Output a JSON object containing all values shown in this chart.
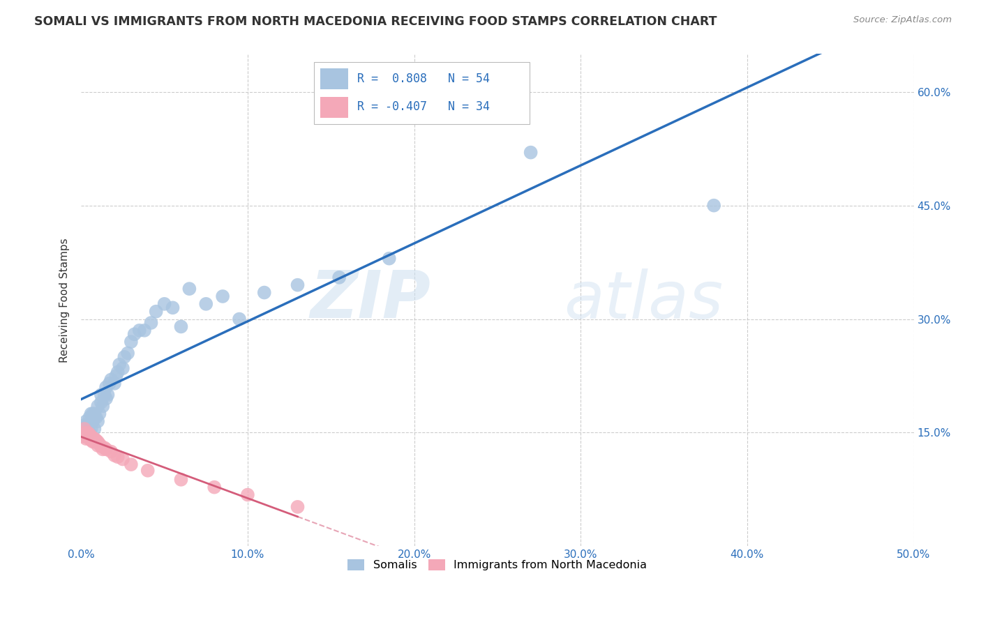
{
  "title": "SOMALI VS IMMIGRANTS FROM NORTH MACEDONIA RECEIVING FOOD STAMPS CORRELATION CHART",
  "source": "Source: ZipAtlas.com",
  "ylabel": "Receiving Food Stamps",
  "xlim": [
    0.0,
    0.5
  ],
  "ylim": [
    0.0,
    0.65
  ],
  "xticks": [
    0.0,
    0.1,
    0.2,
    0.3,
    0.4,
    0.5
  ],
  "yticks": [
    0.0,
    0.15,
    0.3,
    0.45,
    0.6
  ],
  "xtick_labels": [
    "0.0%",
    "10.0%",
    "20.0%",
    "30.0%",
    "40.0%",
    "50.0%"
  ],
  "ytick_labels": [
    "",
    "15.0%",
    "30.0%",
    "45.0%",
    "60.0%"
  ],
  "blue_R": 0.808,
  "blue_N": 54,
  "pink_R": -0.407,
  "pink_N": 34,
  "blue_color": "#a8c4e0",
  "pink_color": "#f4a8b8",
  "blue_line_color": "#2a6ebb",
  "pink_line_color": "#d45c7a",
  "watermark_zip": "ZIP",
  "watermark_atlas": "atlas",
  "legend_label_blue": "Somalis",
  "legend_label_pink": "Immigrants from North Macedonia",
  "somali_x": [
    0.001,
    0.002,
    0.002,
    0.003,
    0.003,
    0.004,
    0.004,
    0.005,
    0.005,
    0.006,
    0.006,
    0.007,
    0.007,
    0.008,
    0.008,
    0.009,
    0.01,
    0.01,
    0.011,
    0.012,
    0.012,
    0.013,
    0.014,
    0.015,
    0.015,
    0.016,
    0.017,
    0.018,
    0.02,
    0.021,
    0.022,
    0.023,
    0.025,
    0.026,
    0.028,
    0.03,
    0.032,
    0.035,
    0.038,
    0.042,
    0.045,
    0.05,
    0.055,
    0.06,
    0.065,
    0.075,
    0.085,
    0.095,
    0.11,
    0.13,
    0.155,
    0.185,
    0.27,
    0.38
  ],
  "somali_y": [
    0.15,
    0.155,
    0.16,
    0.145,
    0.165,
    0.155,
    0.16,
    0.15,
    0.17,
    0.155,
    0.175,
    0.165,
    0.175,
    0.155,
    0.175,
    0.17,
    0.165,
    0.185,
    0.175,
    0.19,
    0.2,
    0.185,
    0.2,
    0.195,
    0.21,
    0.2,
    0.215,
    0.22,
    0.215,
    0.225,
    0.23,
    0.24,
    0.235,
    0.25,
    0.255,
    0.27,
    0.28,
    0.285,
    0.285,
    0.295,
    0.31,
    0.32,
    0.315,
    0.29,
    0.34,
    0.32,
    0.33,
    0.3,
    0.335,
    0.345,
    0.355,
    0.38,
    0.52,
    0.45
  ],
  "macedonia_x": [
    0.001,
    0.001,
    0.002,
    0.002,
    0.003,
    0.003,
    0.004,
    0.004,
    0.005,
    0.005,
    0.006,
    0.006,
    0.007,
    0.007,
    0.008,
    0.008,
    0.009,
    0.01,
    0.01,
    0.011,
    0.012,
    0.013,
    0.014,
    0.015,
    0.018,
    0.02,
    0.022,
    0.025,
    0.03,
    0.04,
    0.06,
    0.08,
    0.1,
    0.13
  ],
  "macedonia_y": [
    0.15,
    0.145,
    0.155,
    0.148,
    0.148,
    0.142,
    0.15,
    0.145,
    0.148,
    0.142,
    0.145,
    0.14,
    0.143,
    0.138,
    0.142,
    0.138,
    0.14,
    0.138,
    0.133,
    0.135,
    0.132,
    0.128,
    0.13,
    0.128,
    0.125,
    0.12,
    0.118,
    0.115,
    0.108,
    0.1,
    0.088,
    0.078,
    0.068,
    0.052
  ]
}
